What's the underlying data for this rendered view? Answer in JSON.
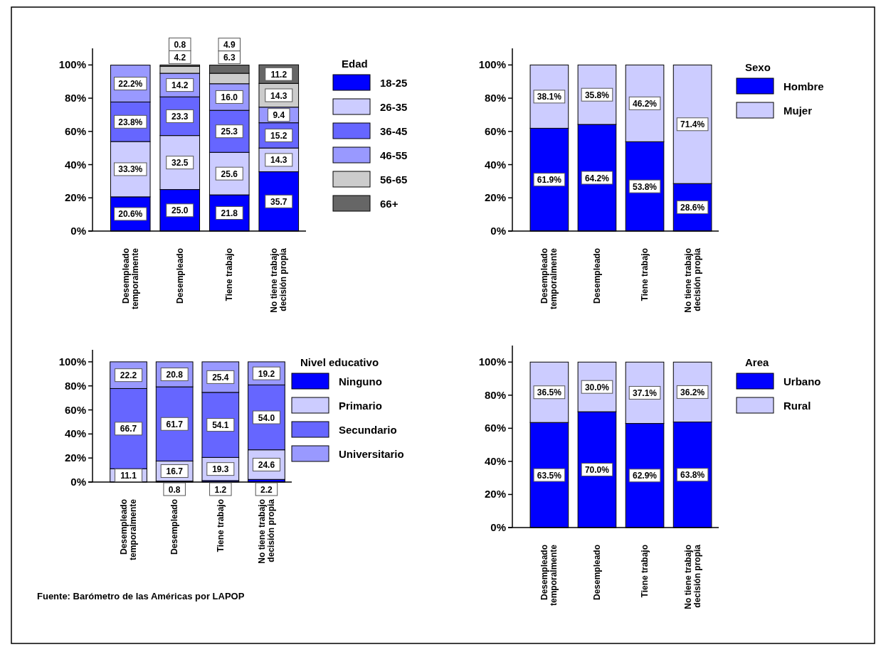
{
  "chart_data": [
    {
      "type": "bar",
      "stacked": true,
      "legend": "right",
      "legend_title": "Edad",
      "categories": [
        "Desempleado temporalmente",
        "Desempleado",
        "Tiene trabajo",
        "No tiene trabajo decisión propia"
      ],
      "ylim": [
        0,
        110
      ],
      "yticks": [
        {
          "value": 0,
          "label": "0%"
        },
        {
          "value": 20,
          "label": "20%"
        },
        {
          "value": 40,
          "label": "40%"
        },
        {
          "value": 60,
          "label": "60%"
        },
        {
          "value": 80,
          "label": "80%"
        },
        {
          "value": 100,
          "label": "100%"
        }
      ],
      "series": [
        {
          "name": "18-25",
          "color": "#0000ff",
          "values": [
            20.6,
            25.0,
            21.8,
            35.7
          ],
          "value_labels": [
            "20.6%",
            "25.0",
            "21.8",
            "35.7"
          ]
        },
        {
          "name": "26-35",
          "color": "#ccccff",
          "values": [
            33.3,
            32.5,
            25.6,
            14.3
          ],
          "value_labels": [
            "33.3%",
            "32.5",
            "25.6",
            "14.3"
          ]
        },
        {
          "name": "36-45",
          "color": "#6666ff",
          "values": [
            23.8,
            23.3,
            25.3,
            15.2
          ],
          "value_labels": [
            "23.8%",
            "23.3",
            "25.3",
            "15.2"
          ]
        },
        {
          "name": "46-55",
          "color": "#9999ff",
          "values": [
            22.2,
            14.2,
            16.0,
            9.4
          ],
          "value_labels": [
            "22.2%",
            "14.2",
            "16.0",
            "9.4"
          ]
        },
        {
          "name": "56-65",
          "color": "#cccccc",
          "values": [
            null,
            4.2,
            6.3,
            14.3
          ],
          "value_labels": [
            null,
            "4.2",
            "6.3",
            "14.3"
          ]
        },
        {
          "name": "66+",
          "color": "#666666",
          "values": [
            null,
            0.8,
            4.9,
            11.2
          ],
          "value_labels": [
            null,
            "0.8",
            "4.9",
            "11.2"
          ]
        }
      ]
    },
    {
      "type": "bar",
      "stacked": true,
      "legend": "right",
      "legend_title": "Sexo",
      "categories": [
        "Desempleado temporalmente",
        "Desempleado",
        "Tiene trabajo",
        "No tiene trabajo decisión propia"
      ],
      "ylim": [
        0,
        110
      ],
      "yticks": [
        {
          "value": 0,
          "label": "0%"
        },
        {
          "value": 20,
          "label": "20%"
        },
        {
          "value": 40,
          "label": "40%"
        },
        {
          "value": 60,
          "label": "60%"
        },
        {
          "value": 80,
          "label": "80%"
        },
        {
          "value": 100,
          "label": "100%"
        }
      ],
      "series": [
        {
          "name": "Hombre",
          "color": "#0000ff",
          "values": [
            61.9,
            64.2,
            53.8,
            28.6
          ],
          "value_labels": [
            "61.9%",
            "64.2%",
            "53.8%",
            "28.6%"
          ]
        },
        {
          "name": "Mujer",
          "color": "#ccccff",
          "values": [
            38.1,
            35.8,
            46.2,
            71.4
          ],
          "value_labels": [
            "38.1%",
            "35.8%",
            "46.2%",
            "71.4%"
          ]
        }
      ]
    },
    {
      "type": "bar",
      "stacked": true,
      "legend": "right",
      "legend_title": "Nivel educativo",
      "categories": [
        "Desempleado temporalmente",
        "Desempleado",
        "Tiene trabajo",
        "No tiene trabajo decisión propia"
      ],
      "ylim": [
        0,
        110
      ],
      "yticks": [
        {
          "value": 0,
          "label": "0%"
        },
        {
          "value": 20,
          "label": "20%"
        },
        {
          "value": 40,
          "label": "40%"
        },
        {
          "value": 60,
          "label": "60%"
        },
        {
          "value": 80,
          "label": "80%"
        },
        {
          "value": 100,
          "label": "100%"
        }
      ],
      "annotations": [
        "Fuente: Barómetro de las Américas por LAPOP"
      ],
      "series": [
        {
          "name": "Ninguno",
          "color": "#0000ff",
          "values": [
            null,
            0.8,
            1.2,
            2.2
          ],
          "value_labels": [
            null,
            "0.8",
            "1.2",
            "2.2"
          ]
        },
        {
          "name": "Primario",
          "color": "#ccccff",
          "values": [
            11.1,
            16.7,
            19.3,
            24.6
          ],
          "value_labels": [
            "11.1",
            "16.7",
            "19.3",
            "24.6"
          ]
        },
        {
          "name": "Secundario",
          "color": "#6666ff",
          "values": [
            66.7,
            61.7,
            54.1,
            54.0
          ],
          "value_labels": [
            "66.7",
            "61.7",
            "54.1",
            "54.0"
          ]
        },
        {
          "name": "Universitario",
          "color": "#9999ff",
          "values": [
            22.2,
            20.8,
            25.4,
            19.2
          ],
          "value_labels": [
            "22.2",
            "20.8",
            "25.4",
            "19.2"
          ]
        }
      ]
    },
    {
      "type": "bar",
      "stacked": true,
      "legend": "right",
      "legend_title": "Area",
      "categories": [
        "Desempleado temporalmente",
        "Desempleado",
        "Tiene trabajo",
        "No tiene trabajo decisión propia"
      ],
      "ylim": [
        0,
        110
      ],
      "yticks": [
        {
          "value": 0,
          "label": "0%"
        },
        {
          "value": 20,
          "label": "20%"
        },
        {
          "value": 40,
          "label": "40%"
        },
        {
          "value": 60,
          "label": "60%"
        },
        {
          "value": 80,
          "label": "80%"
        },
        {
          "value": 100,
          "label": "100%"
        }
      ],
      "series": [
        {
          "name": "Urbano",
          "color": "#0000ff",
          "values": [
            63.5,
            70.0,
            62.9,
            63.8
          ],
          "value_labels": [
            "63.5%",
            "70.0%",
            "62.9%",
            "63.8%"
          ]
        },
        {
          "name": "Rural",
          "color": "#ccccff",
          "values": [
            36.5,
            30.0,
            37.1,
            36.2
          ],
          "value_labels": [
            "36.5%",
            "30.0%",
            "37.1%",
            "36.2%"
          ]
        }
      ]
    }
  ]
}
